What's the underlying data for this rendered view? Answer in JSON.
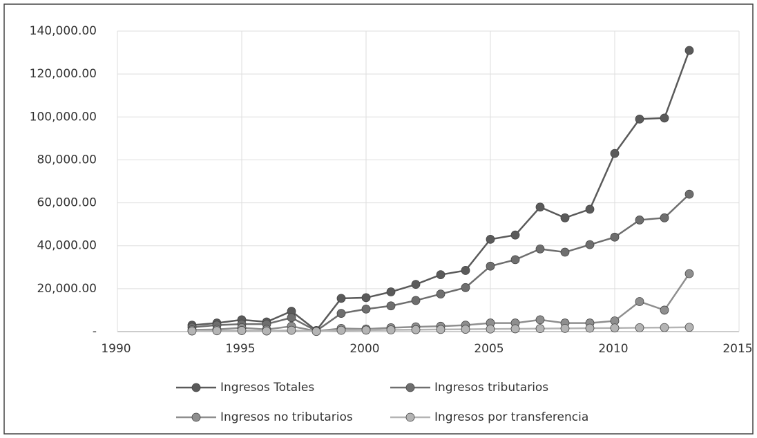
{
  "chart_data": {
    "type": "line",
    "x": [
      1993,
      1994,
      1995,
      1996,
      1997,
      1998,
      1999,
      2000,
      2001,
      2002,
      2003,
      2004,
      2005,
      2006,
      2007,
      2008,
      2009,
      2010,
      2011,
      2012,
      2013
    ],
    "series": [
      {
        "name": "Ingresos Totales",
        "color": "#5a5a5a",
        "values": [
          3000,
          4000,
          5500,
          4500,
          9500,
          500,
          15500,
          15800,
          18500,
          22000,
          26500,
          28500,
          43000,
          45000,
          58000,
          53000,
          57000,
          83000,
          99000,
          99500,
          131000
        ]
      },
      {
        "name": "Ingresos tributarios",
        "color": "#6e6e6e",
        "values": [
          2000,
          3000,
          3500,
          3500,
          6500,
          300,
          8500,
          10500,
          12000,
          14500,
          17500,
          20500,
          30500,
          33500,
          38500,
          37000,
          40500,
          44000,
          52000,
          53000,
          64000
        ]
      },
      {
        "name": "Ingresos no tributarios",
        "color": "#8e8e8e",
        "values": [
          800,
          1000,
          1800,
          1000,
          2500,
          200,
          1500,
          1200,
          1800,
          2200,
          2500,
          3000,
          4000,
          4000,
          5500,
          4000,
          4000,
          5000,
          14000,
          10000,
          27000
        ]
      },
      {
        "name": "Ingresos por transferencia",
        "color": "#b4b4b4",
        "values": [
          300,
          400,
          500,
          300,
          600,
          100,
          600,
          700,
          800,
          900,
          1000,
          1100,
          1200,
          1300,
          1400,
          1500,
          1600,
          1700,
          1800,
          1900,
          2000
        ]
      }
    ],
    "xlim": [
      1990,
      2015
    ],
    "xticks": [
      1990,
      1995,
      2000,
      2005,
      2010,
      2015
    ],
    "ylim": [
      0,
      140000
    ],
    "yticks": [
      {
        "value": 0,
        "label": "-"
      },
      {
        "value": 20000,
        "label": "20,000.00"
      },
      {
        "value": 40000,
        "label": "40,000.00"
      },
      {
        "value": 60000,
        "label": "60,000.00"
      },
      {
        "value": 80000,
        "label": "80,000.00"
      },
      {
        "value": 100000,
        "label": "100,000.00"
      },
      {
        "value": 120000,
        "label": "120,000.00"
      },
      {
        "value": 140000,
        "label": "140,000.00"
      }
    ],
    "grid": true,
    "legend": "bottom"
  }
}
